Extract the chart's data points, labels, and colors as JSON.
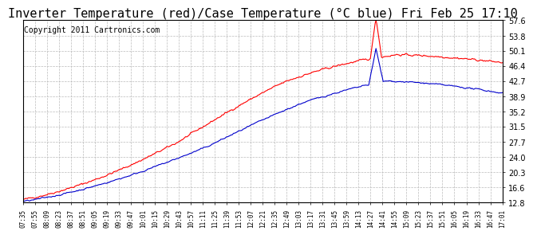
{
  "title": "Inverter Temperature (red)/Case Temperature (°C blue) Fri Feb 25 17:10",
  "copyright": "Copyright 2011 Cartronics.com",
  "yticks": [
    12.8,
    16.6,
    20.3,
    24.0,
    27.7,
    31.5,
    35.2,
    38.9,
    42.7,
    46.4,
    50.1,
    53.8,
    57.6
  ],
  "ymin": 12.8,
  "ymax": 57.6,
  "x_labels": [
    "07:35",
    "07:55",
    "08:09",
    "08:23",
    "08:37",
    "08:51",
    "09:05",
    "09:19",
    "09:33",
    "09:47",
    "10:01",
    "10:15",
    "10:29",
    "10:43",
    "10:57",
    "11:11",
    "11:25",
    "11:39",
    "11:53",
    "12:07",
    "12:21",
    "12:35",
    "12:49",
    "13:03",
    "13:17",
    "13:31",
    "13:45",
    "13:59",
    "14:13",
    "14:27",
    "14:41",
    "14:55",
    "15:09",
    "15:23",
    "15:37",
    "15:51",
    "16:05",
    "16:19",
    "16:33",
    "16:47",
    "17:01"
  ],
  "red_color": "#ff0000",
  "blue_color": "#0000cc",
  "bg_color": "#ffffff",
  "grid_color": "#bbbbbb",
  "title_fontsize": 11,
  "copyright_fontsize": 7
}
